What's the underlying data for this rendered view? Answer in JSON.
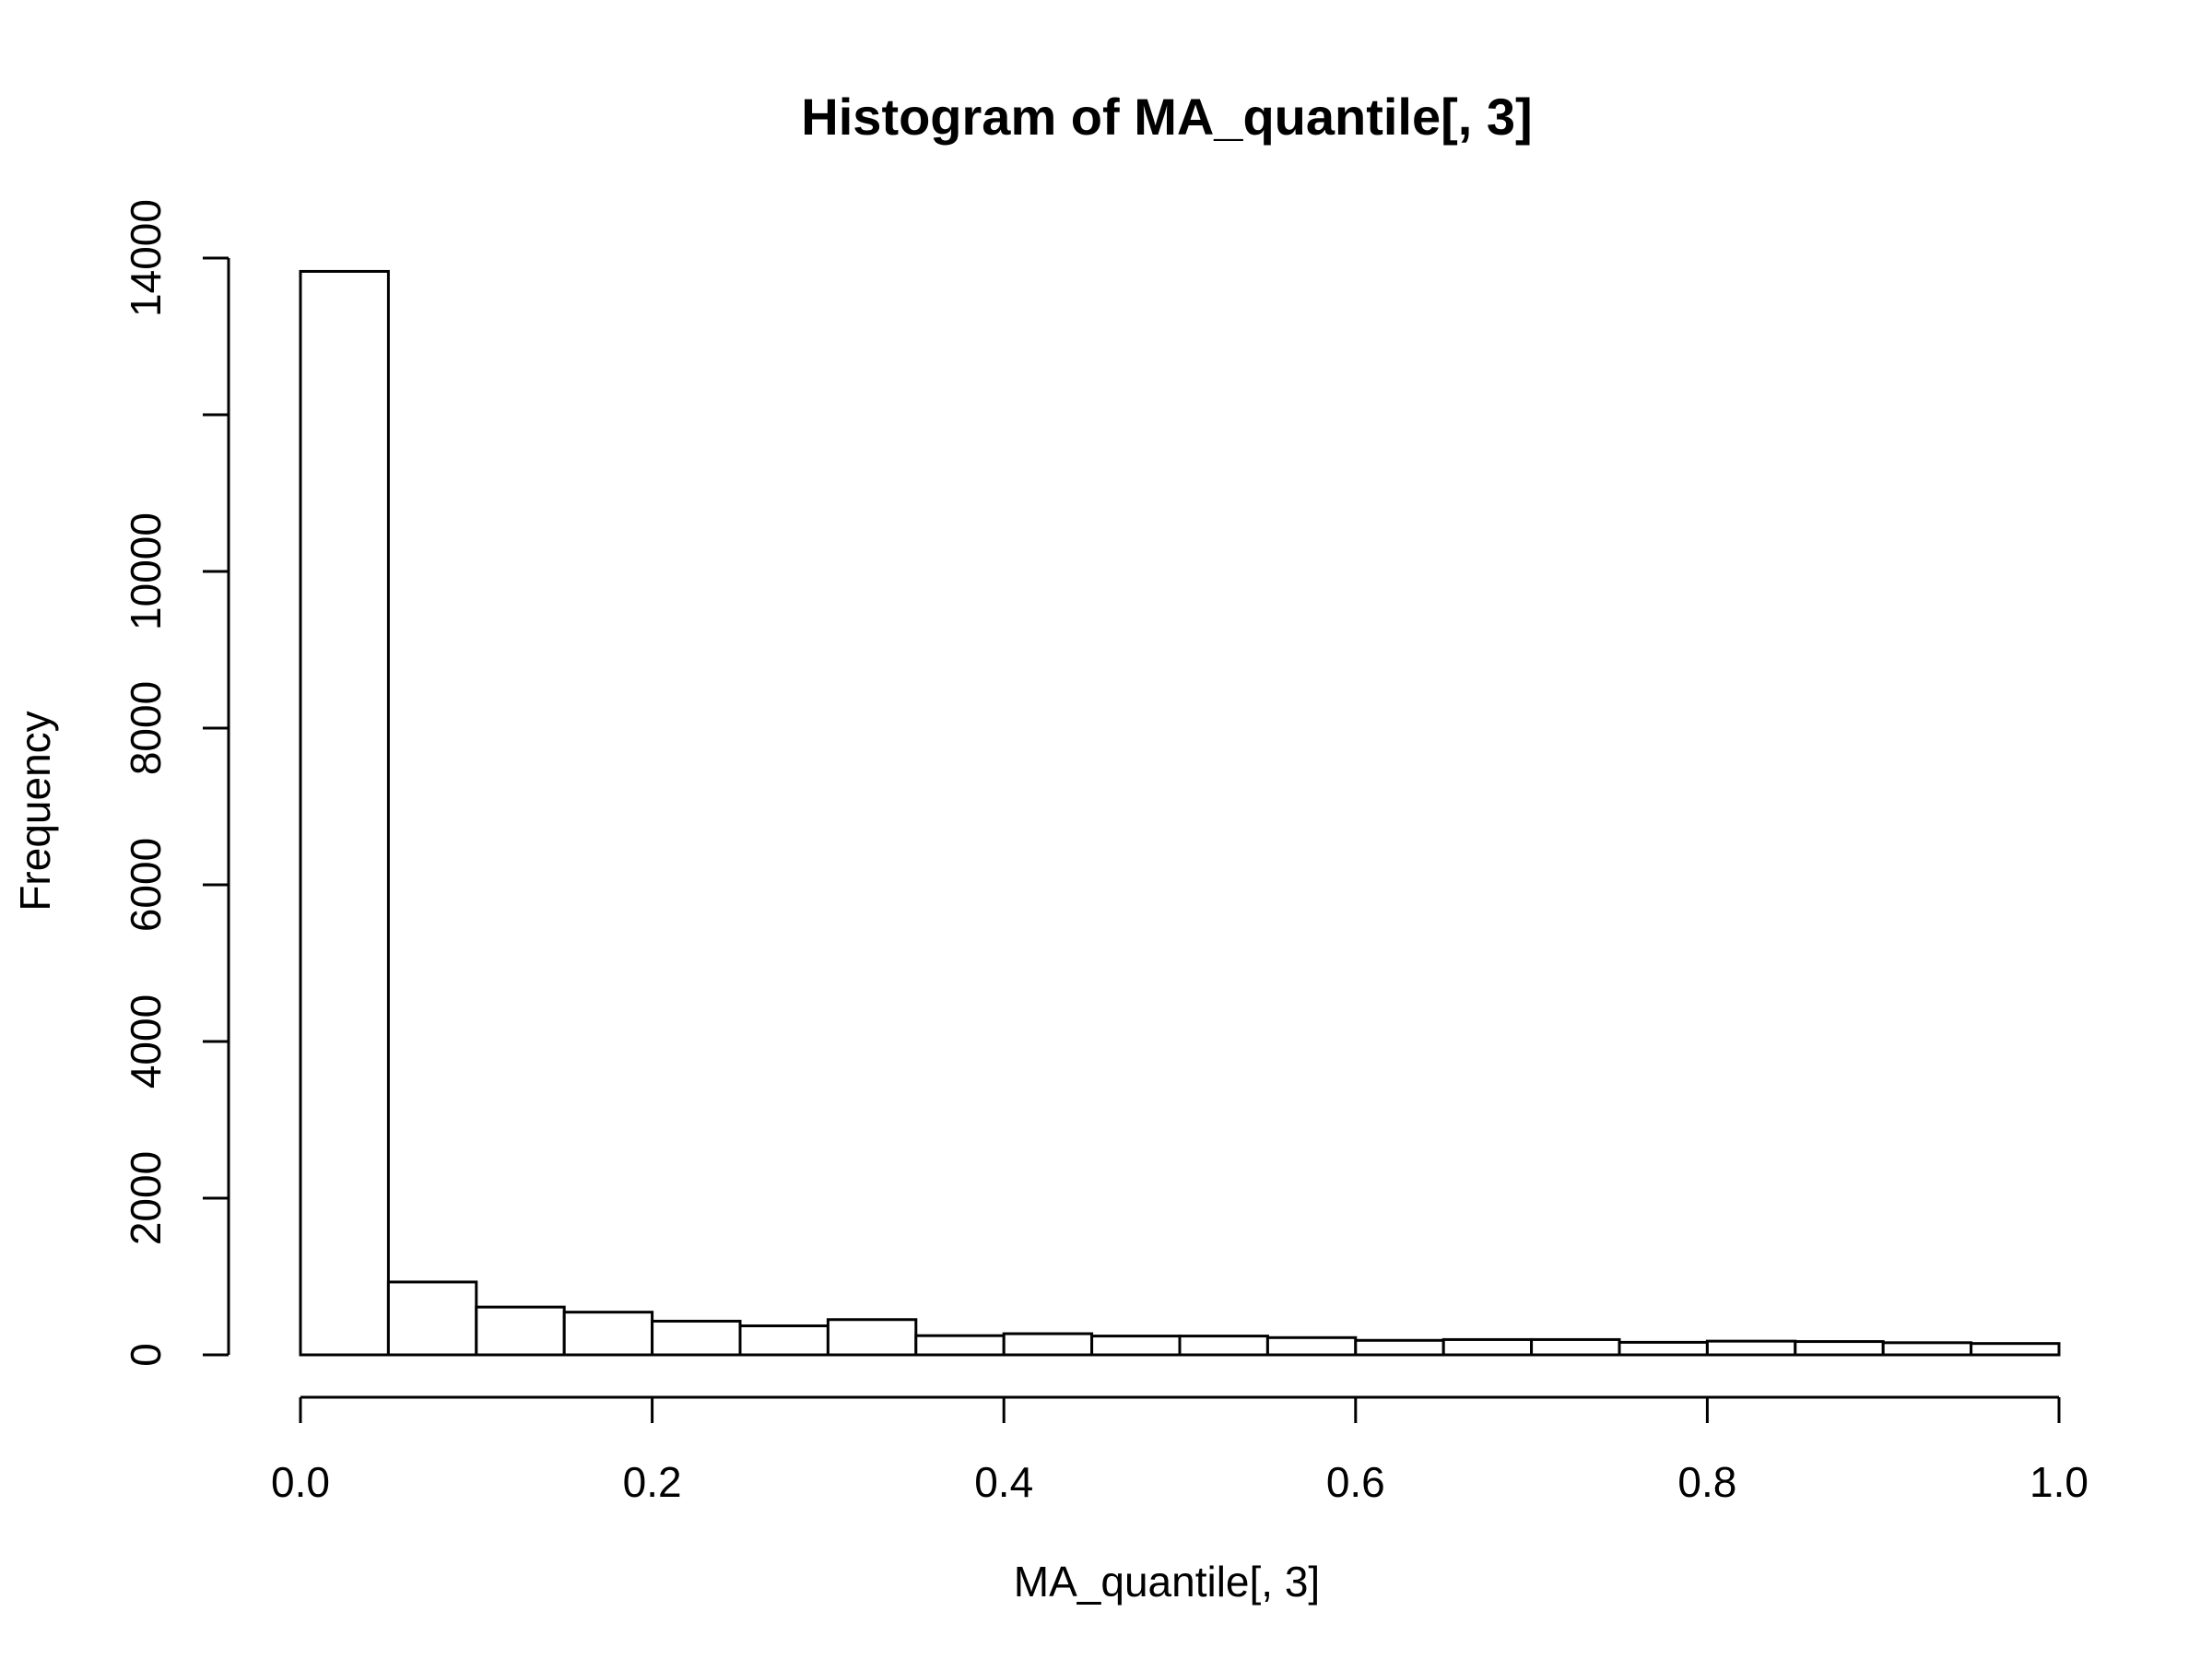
{
  "chart_data": {
    "type": "bar",
    "title": "Histogram of MA_quantile[, 3]",
    "xlabel": "MA_quantile[, 3]",
    "ylabel": "Frequency",
    "xlim": [
      0,
      1
    ],
    "ylim": [
      0,
      14000
    ],
    "x_ticks": [
      0.0,
      0.2,
      0.4,
      0.6,
      0.8,
      1.0
    ],
    "x_tick_labels": [
      "0.0",
      "0.2",
      "0.4",
      "0.6",
      "0.8",
      "1.0"
    ],
    "y_ticks": [
      0,
      2000,
      4000,
      6000,
      8000,
      10000,
      12000,
      14000
    ],
    "y_tick_labels": [
      "0",
      "2000",
      "4000",
      "6000",
      "8000",
      "10000",
      "",
      "14000"
    ],
    "bins": [
      {
        "start": 0.0,
        "end": 0.05,
        "count": 13830
      },
      {
        "start": 0.05,
        "end": 0.1,
        "count": 930
      },
      {
        "start": 0.1,
        "end": 0.15,
        "count": 610
      },
      {
        "start": 0.15,
        "end": 0.2,
        "count": 545
      },
      {
        "start": 0.2,
        "end": 0.25,
        "count": 430
      },
      {
        "start": 0.25,
        "end": 0.3,
        "count": 370
      },
      {
        "start": 0.3,
        "end": 0.35,
        "count": 450
      },
      {
        "start": 0.35,
        "end": 0.4,
        "count": 245
      },
      {
        "start": 0.4,
        "end": 0.45,
        "count": 270
      },
      {
        "start": 0.45,
        "end": 0.5,
        "count": 240
      },
      {
        "start": 0.5,
        "end": 0.55,
        "count": 240
      },
      {
        "start": 0.55,
        "end": 0.6,
        "count": 220
      },
      {
        "start": 0.6,
        "end": 0.65,
        "count": 185
      },
      {
        "start": 0.65,
        "end": 0.7,
        "count": 195
      },
      {
        "start": 0.7,
        "end": 0.75,
        "count": 195
      },
      {
        "start": 0.75,
        "end": 0.8,
        "count": 160
      },
      {
        "start": 0.8,
        "end": 0.85,
        "count": 175
      },
      {
        "start": 0.85,
        "end": 0.9,
        "count": 170
      },
      {
        "start": 0.9,
        "end": 0.95,
        "count": 155
      },
      {
        "start": 0.95,
        "end": 1.0,
        "count": 145
      }
    ],
    "bar_fill": "#ffffff",
    "bar_stroke": "#000000",
    "grid": false,
    "legend": "none"
  }
}
